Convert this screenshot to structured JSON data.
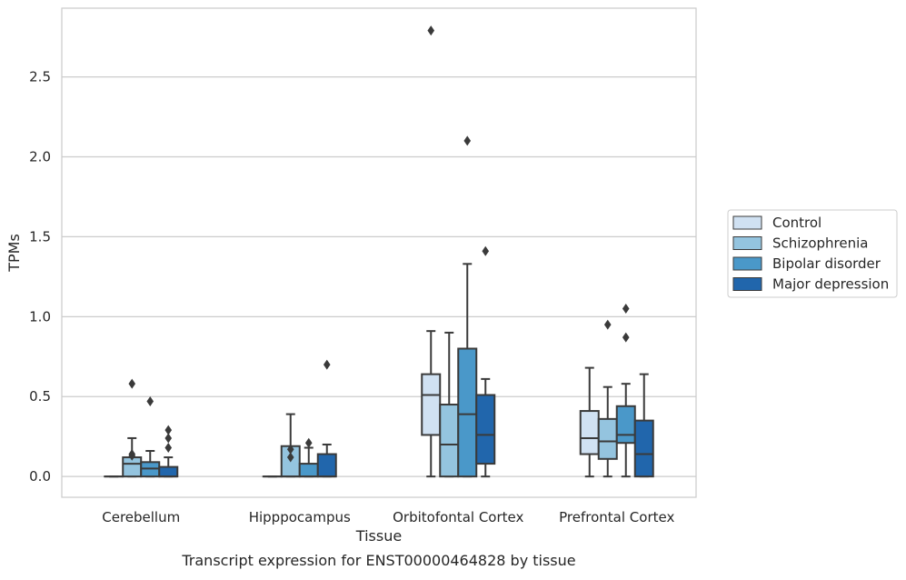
{
  "chart_data": {
    "type": "boxplot",
    "caption": "Transcript expression for ENST00000464828 by tissue",
    "xlabel": "Tissue",
    "ylabel": "TPMs",
    "ylim": [
      -0.13,
      2.93
    ],
    "yticks": [
      0.0,
      0.5,
      1.0,
      1.5,
      2.0,
      2.5
    ],
    "ytick_labels": [
      "0.0",
      "0.5",
      "1.0",
      "1.5",
      "2.0",
      "2.5"
    ],
    "grid": "horizontal",
    "legend_position": "right",
    "categories": [
      "Cerebellum",
      "Hipppocampus",
      "Orbitofontal Cortex",
      "Prefrontal Cortex"
    ],
    "series": [
      {
        "name": "Control",
        "color": "#d0e1f2",
        "boxes": [
          {
            "whislo": 0.0,
            "q1": 0.0,
            "med": 0.0,
            "q3": 0.0,
            "whishi": 0.0,
            "fliers": []
          },
          {
            "whislo": 0.0,
            "q1": 0.0,
            "med": 0.0,
            "q3": 0.0,
            "whishi": 0.0,
            "fliers": []
          },
          {
            "whislo": 0.0,
            "q1": 0.26,
            "med": 0.51,
            "q3": 0.64,
            "whishi": 0.91,
            "fliers": [
              2.79
            ]
          },
          {
            "whislo": 0.0,
            "q1": 0.14,
            "med": 0.24,
            "q3": 0.41,
            "whishi": 0.68,
            "fliers": []
          }
        ]
      },
      {
        "name": "Schizophrenia",
        "color": "#94c4df",
        "boxes": [
          {
            "whislo": 0.0,
            "q1": 0.0,
            "med": 0.08,
            "q3": 0.12,
            "whishi": 0.24,
            "fliers": [
              0.58,
              0.14,
              0.13
            ]
          },
          {
            "whislo": 0.0,
            "q1": 0.0,
            "med": 0.0,
            "q3": 0.19,
            "whishi": 0.39,
            "fliers": [
              0.17,
              0.12
            ]
          },
          {
            "whislo": 0.0,
            "q1": 0.0,
            "med": 0.2,
            "q3": 0.45,
            "whishi": 0.9,
            "fliers": []
          },
          {
            "whislo": 0.0,
            "q1": 0.11,
            "med": 0.22,
            "q3": 0.36,
            "whishi": 0.56,
            "fliers": [
              0.95
            ]
          }
        ]
      },
      {
        "name": "Bipolar disorder",
        "color": "#4a98c9",
        "boxes": [
          {
            "whislo": 0.0,
            "q1": 0.0,
            "med": 0.05,
            "q3": 0.09,
            "whishi": 0.16,
            "fliers": [
              0.47
            ]
          },
          {
            "whislo": 0.0,
            "q1": 0.0,
            "med": 0.0,
            "q3": 0.08,
            "whishi": 0.18,
            "fliers": [
              0.21
            ]
          },
          {
            "whislo": 0.0,
            "q1": 0.0,
            "med": 0.39,
            "q3": 0.8,
            "whishi": 1.33,
            "fliers": [
              2.1
            ]
          },
          {
            "whislo": 0.0,
            "q1": 0.21,
            "med": 0.26,
            "q3": 0.44,
            "whishi": 0.58,
            "fliers": [
              1.05,
              0.87
            ]
          }
        ]
      },
      {
        "name": "Major depression",
        "color": "#2166ac",
        "boxes": [
          {
            "whislo": 0.0,
            "q1": 0.0,
            "med": 0.0,
            "q3": 0.06,
            "whishi": 0.12,
            "fliers": [
              0.29,
              0.24,
              0.18
            ]
          },
          {
            "whislo": 0.0,
            "q1": 0.0,
            "med": 0.0,
            "q3": 0.14,
            "whishi": 0.2,
            "fliers": [
              0.7
            ]
          },
          {
            "whislo": 0.0,
            "q1": 0.08,
            "med": 0.26,
            "q3": 0.51,
            "whishi": 0.61,
            "fliers": [
              1.41
            ]
          },
          {
            "whislo": 0.0,
            "q1": 0.0,
            "med": 0.14,
            "q3": 0.35,
            "whishi": 0.64,
            "fliers": []
          }
        ]
      }
    ]
  }
}
